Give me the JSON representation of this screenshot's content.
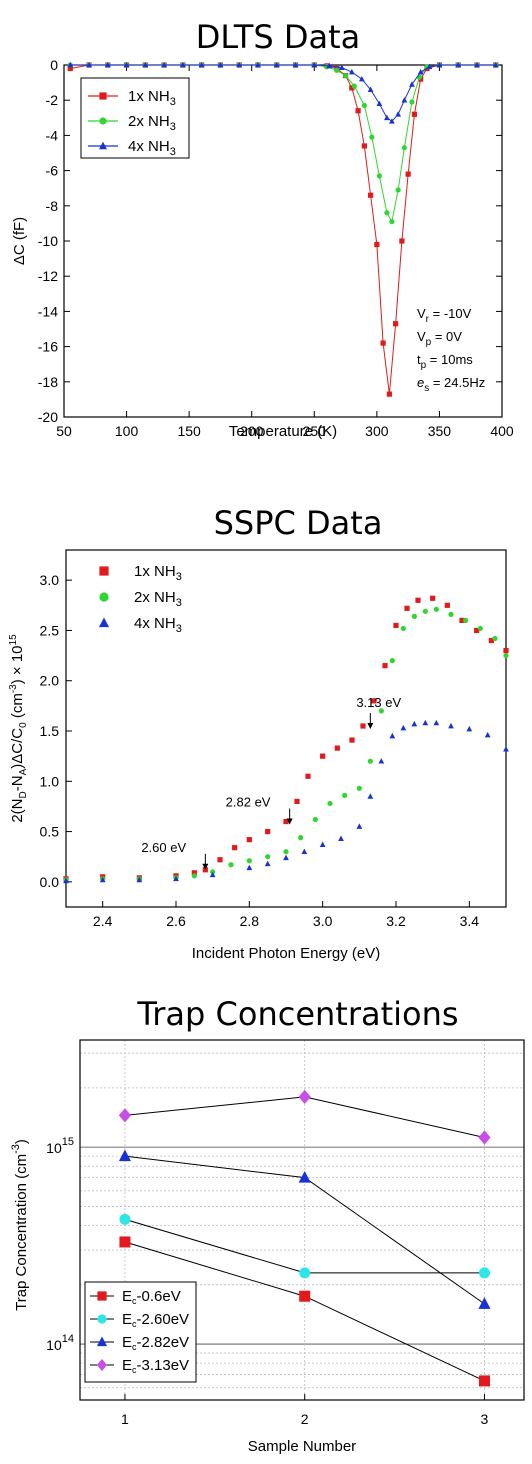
{
  "chart_data": [
    {
      "type": "line",
      "title": "DLTS Data",
      "xlabel": "Temperature (K)",
      "ylabel": "ΔC (fF)",
      "xlim": [
        50,
        400
      ],
      "ylim": [
        -20,
        0
      ],
      "xticks": [
        50,
        100,
        150,
        200,
        250,
        300,
        350,
        400
      ],
      "yticks": [
        0,
        -2,
        -4,
        -6,
        -8,
        -10,
        -12,
        -14,
        -16,
        -18,
        -20
      ],
      "legend_position": "top-left",
      "grid": false,
      "series": [
        {
          "name": "1x NH",
          "sub": "3",
          "color": "#e31a1c",
          "marker": "square",
          "x": [
            55,
            70,
            85,
            100,
            115,
            130,
            145,
            160,
            175,
            190,
            205,
            220,
            235,
            250,
            260,
            268,
            275,
            280,
            285,
            290,
            295,
            300,
            305,
            310,
            315,
            320,
            325,
            330,
            335,
            340,
            350,
            365,
            380,
            395
          ],
          "y": [
            -0.2,
            0,
            0,
            0,
            0,
            0,
            0,
            0,
            0,
            0,
            0,
            0,
            0,
            0,
            -0.05,
            -0.2,
            -0.6,
            -1.3,
            -2.6,
            -4.6,
            -7.4,
            -10.2,
            -15.8,
            -18.7,
            -14.7,
            -10,
            -6.2,
            -2.8,
            -0.8,
            -0.2,
            0,
            0,
            0,
            0
          ]
        },
        {
          "name": "2x NH",
          "sub": "3",
          "color": "#2fd62f",
          "marker": "circle",
          "x": [
            55,
            70,
            85,
            100,
            115,
            130,
            145,
            160,
            175,
            190,
            205,
            220,
            235,
            250,
            260,
            268,
            275,
            282,
            290,
            296,
            302,
            308,
            312,
            317,
            322,
            328,
            334,
            340,
            350,
            365,
            380,
            395
          ],
          "y": [
            0,
            0,
            0,
            0,
            0,
            0,
            0,
            0,
            0,
            0,
            0,
            0,
            0,
            0,
            -0.1,
            -0.3,
            -0.6,
            -1.2,
            -2.3,
            -4.1,
            -6.3,
            -8.4,
            -8.9,
            -7.1,
            -4.7,
            -2.1,
            -0.7,
            -0.1,
            0,
            0,
            0,
            0
          ]
        },
        {
          "name": "4x NH",
          "sub": "3",
          "color": "#1732d6",
          "marker": "triangle",
          "x": [
            55,
            70,
            85,
            100,
            115,
            130,
            145,
            160,
            175,
            190,
            205,
            220,
            235,
            250,
            262,
            272,
            280,
            288,
            295,
            302,
            308,
            312,
            317,
            322,
            328,
            335,
            342,
            350,
            365,
            380,
            395
          ],
          "y": [
            0,
            0,
            0,
            0,
            0,
            0,
            0,
            0,
            0,
            0,
            0,
            0,
            0,
            0,
            -0.05,
            -0.15,
            -0.4,
            -0.8,
            -1.4,
            -2.2,
            -3.0,
            -3.2,
            -2.8,
            -2.0,
            -1.1,
            -0.4,
            -0.1,
            0,
            0,
            0,
            0
          ]
        }
      ],
      "annotations": [
        {
          "label": "V",
          "sub": "r",
          "value": " = -10V"
        },
        {
          "label": "V",
          "sub": "p",
          "value": " = 0V"
        },
        {
          "label": "t",
          "sub": "p",
          "value": " = 10ms"
        },
        {
          "label": "e",
          "sub": "s",
          "value": " = 24.5Hz"
        }
      ]
    },
    {
      "type": "scatter",
      "title": "SSPC Data",
      "xlabel": "Incident Photon Energy (eV)",
      "ylabel": "2(N_D-N_A)ΔC/C_0 (cm^-3) × 10^15",
      "ylabel_parts": [
        "2(N",
        "D",
        "-N",
        "A",
        ")ΔC/C",
        "0",
        " (cm",
        "-3",
        ") × 10",
        "15"
      ],
      "xlim": [
        2.3,
        3.5
      ],
      "ylim": [
        -0.25,
        3.3
      ],
      "xticks": [
        2.4,
        2.6,
        2.8,
        3.0,
        3.2,
        3.4
      ],
      "yticks": [
        0.0,
        0.5,
        1.0,
        1.5,
        2.0,
        2.5,
        3.0
      ],
      "legend_position": "top-left",
      "grid": false,
      "series": [
        {
          "name": "1x NH",
          "sub": "3",
          "color": "#e31a1c",
          "marker": "square",
          "x": [
            2.3,
            2.4,
            2.5,
            2.6,
            2.65,
            2.68,
            2.72,
            2.76,
            2.8,
            2.85,
            2.9,
            2.93,
            2.96,
            3.0,
            3.04,
            3.08,
            3.11,
            3.14,
            3.17,
            3.2,
            3.23,
            3.26,
            3.3,
            3.34,
            3.38,
            3.42,
            3.46,
            3.5
          ],
          "y": [
            0.03,
            0.05,
            0.04,
            0.06,
            0.09,
            0.12,
            0.22,
            0.34,
            0.42,
            0.5,
            0.6,
            0.8,
            1.05,
            1.25,
            1.33,
            1.41,
            1.55,
            1.8,
            2.15,
            2.55,
            2.72,
            2.8,
            2.82,
            2.75,
            2.6,
            2.5,
            2.4,
            2.3
          ]
        },
        {
          "name": "2x NH",
          "sub": "3",
          "color": "#2fd62f",
          "marker": "circle",
          "x": [
            2.3,
            2.4,
            2.5,
            2.6,
            2.65,
            2.7,
            2.75,
            2.8,
            2.85,
            2.9,
            2.94,
            2.98,
            3.02,
            3.06,
            3.1,
            3.13,
            3.16,
            3.19,
            3.22,
            3.25,
            3.28,
            3.31,
            3.35,
            3.39,
            3.43,
            3.47,
            3.5
          ],
          "y": [
            0.02,
            0.03,
            0.03,
            0.04,
            0.06,
            0.1,
            0.17,
            0.21,
            0.25,
            0.3,
            0.44,
            0.62,
            0.78,
            0.86,
            0.93,
            1.2,
            1.7,
            2.2,
            2.52,
            2.64,
            2.69,
            2.71,
            2.66,
            2.6,
            2.52,
            2.42,
            2.25
          ]
        },
        {
          "name": "4x NH",
          "sub": "3",
          "color": "#1732d6",
          "marker": "triangle",
          "x": [
            2.3,
            2.4,
            2.5,
            2.6,
            2.7,
            2.8,
            2.85,
            2.9,
            2.95,
            3.0,
            3.05,
            3.1,
            3.13,
            3.16,
            3.19,
            3.22,
            3.25,
            3.28,
            3.31,
            3.35,
            3.4,
            3.45,
            3.5
          ],
          "y": [
            0.01,
            0.02,
            0.02,
            0.03,
            0.07,
            0.14,
            0.18,
            0.24,
            0.3,
            0.37,
            0.43,
            0.55,
            0.85,
            1.2,
            1.45,
            1.53,
            1.57,
            1.58,
            1.58,
            1.55,
            1.52,
            1.46,
            1.32
          ]
        }
      ],
      "annotations": [
        {
          "text": "2.60 eV",
          "x": 2.68,
          "y": 0.1
        },
        {
          "text": "2.82 eV",
          "x": 2.91,
          "y": 0.55
        },
        {
          "text": "3.13 eV",
          "x": 3.13,
          "y": 1.5
        }
      ]
    },
    {
      "type": "line",
      "title": "Trap Concentrations",
      "xlabel": "Sample Number",
      "ylabel": "Trap Concentration (cm^-3)",
      "ylabel_parts": [
        "Trap Concentration (cm",
        "-3",
        ")"
      ],
      "xlim": [
        0.75,
        3.22
      ],
      "ylim": [
        52000000000000.0,
        3500000000000000.0
      ],
      "yscale": "log",
      "xticks": [
        1,
        2,
        3
      ],
      "yticks": [
        {
          "base": "10",
          "exp": "14",
          "value": 100000000000000.0
        },
        {
          "base": "10",
          "exp": "15",
          "value": 1000000000000000.0
        }
      ],
      "legend_position": "bottom-left",
      "grid": true,
      "categories": [
        1,
        2,
        3
      ],
      "series": [
        {
          "name": "E",
          "sub": "c",
          "suffix": "-0.6eV",
          "color": "#e31a1c",
          "marker": "square",
          "values": [
            330000000000000.0,
            175000000000000.0,
            65000000000000.0
          ]
        },
        {
          "name": "E",
          "sub": "c",
          "suffix": "-2.60eV",
          "color": "#2ee6e6",
          "marker": "circle",
          "values": [
            430000000000000.0,
            230000000000000.0,
            230000000000000.0
          ]
        },
        {
          "name": "E",
          "sub": "c",
          "suffix": "-2.82eV",
          "color": "#1732d6",
          "marker": "triangle",
          "values": [
            900000000000000.0,
            700000000000000.0,
            160000000000000.0
          ]
        },
        {
          "name": "E",
          "sub": "c",
          "suffix": "-3.13eV",
          "color": "#c94de8",
          "marker": "diamond",
          "values": [
            1450000000000000.0,
            1800000000000000.0,
            1120000000000000.0
          ]
        }
      ]
    }
  ]
}
